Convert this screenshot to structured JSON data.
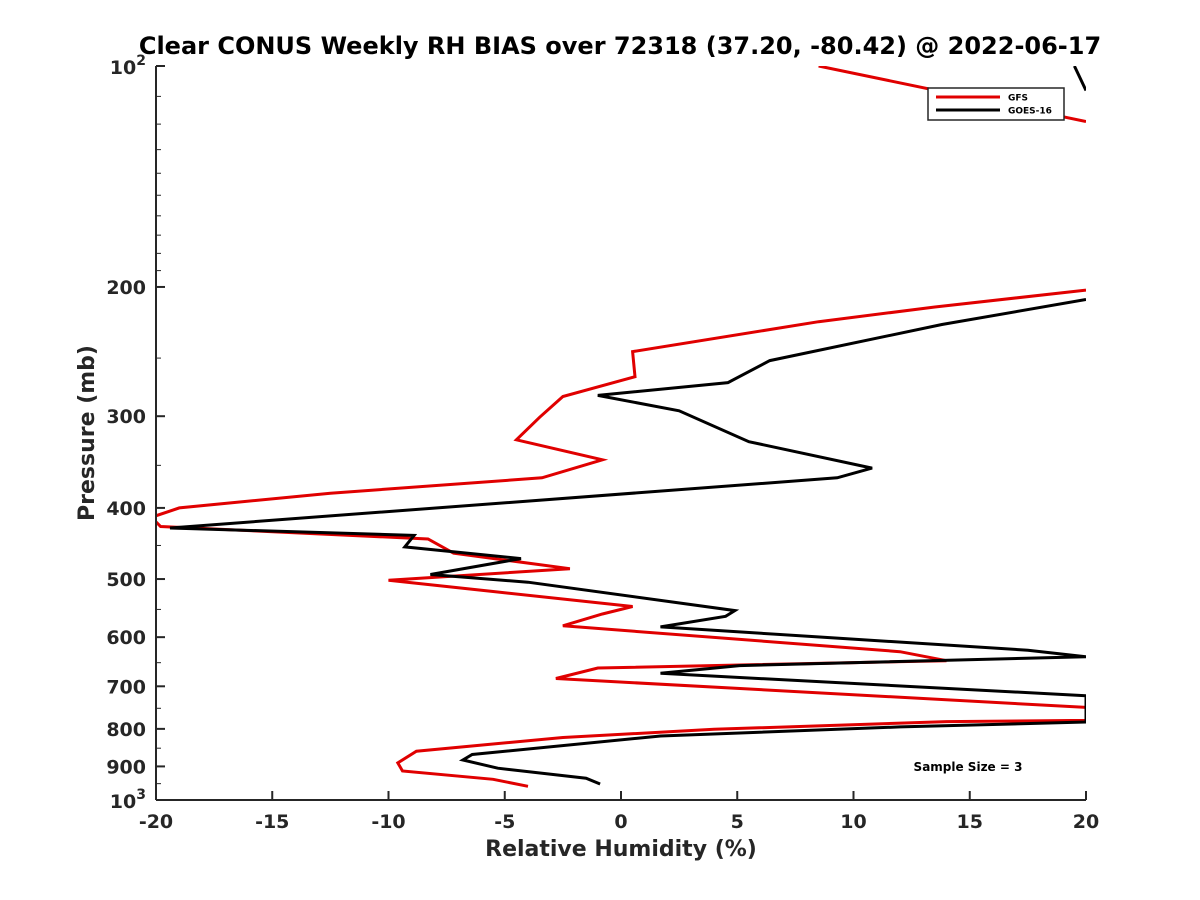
{
  "chart_data": {
    "type": "line",
    "title": "Clear CONUS Weekly RH BIAS over 72318 (37.20, -80.42) @ 2022-06-17",
    "xlabel": "Relative Humidity (%)",
    "ylabel": "Pressure (mb)",
    "xlim": [
      -20,
      20
    ],
    "ylim": [
      100,
      1000
    ],
    "yscale": "log",
    "y_reversed": true,
    "x_ticks": [
      "-20",
      "-15",
      "-10",
      "-5",
      "0",
      "5",
      "10",
      "15",
      "20"
    ],
    "y_ticks": [
      "200",
      "300",
      "400",
      "500",
      "600",
      "700",
      "800",
      "900"
    ],
    "y_tick_values": [
      200,
      300,
      400,
      500,
      600,
      700,
      800,
      900
    ],
    "y_end_ticks": [
      {
        "base": "10",
        "exp": "2",
        "value": 100
      },
      {
        "base": "10",
        "exp": "3",
        "value": 1000
      }
    ],
    "grid": false,
    "legend_position": "top-right",
    "annotation": "Sample Size = 3",
    "series": [
      {
        "name": "GFS",
        "color": "#e00000",
        "points": [
          [
            8.5,
            100
          ],
          [
            20,
            119
          ],
          null,
          [
            20,
            202
          ],
          [
            13.5,
            213
          ],
          [
            8.5,
            223
          ],
          [
            0.5,
            245
          ],
          [
            0.6,
            265
          ],
          [
            -2.5,
            282
          ],
          [
            -3.5,
            301
          ],
          [
            -4.5,
            323
          ],
          [
            -0.8,
            344
          ],
          [
            -3.4,
            364
          ],
          [
            -12.5,
            382
          ],
          [
            -19.0,
            400
          ],
          [
            -20.2,
            412
          ],
          [
            -19.8,
            424
          ],
          [
            -8.3,
            441
          ],
          [
            -7.2,
            461
          ],
          [
            -2.2,
            484
          ],
          [
            -10.0,
            502
          ],
          [
            -5.5,
            520
          ],
          [
            0.5,
            545
          ],
          [
            -0.8,
            558
          ],
          [
            -2.5,
            579
          ],
          [
            12.0,
            628
          ],
          [
            14.0,
            646
          ],
          [
            -1.0,
            661
          ],
          [
            -2.8,
            683
          ],
          [
            20,
            748
          ],
          [
            20,
            779
          ],
          [
            14.0,
            782
          ],
          [
            4.0,
            801
          ],
          [
            -2.5,
            822
          ],
          [
            -8.8,
            858
          ],
          [
            -9.6,
            890
          ],
          [
            -9.4,
            913
          ],
          [
            -5.5,
            937
          ],
          [
            -4.0,
            958
          ]
        ]
      },
      {
        "name": "GOES-16",
        "color": "#000000",
        "points": [
          [
            19.5,
            100
          ],
          [
            20,
            108
          ],
          null,
          [
            20,
            208
          ],
          [
            13.8,
            225
          ],
          [
            6.4,
            252
          ],
          [
            4.6,
            270
          ],
          [
            -1.0,
            281
          ],
          [
            2.5,
            295
          ],
          [
            5.5,
            325
          ],
          [
            10.8,
            353
          ],
          [
            9.3,
            364
          ],
          [
            -19.4,
            426
          ],
          [
            -8.9,
            436
          ],
          [
            -9.3,
            452
          ],
          [
            -4.3,
            469
          ],
          [
            -8.2,
            493
          ],
          [
            -4.0,
            505
          ],
          [
            4.9,
            552
          ],
          [
            4.5,
            562
          ],
          [
            1.7,
            581
          ],
          [
            17.5,
            625
          ],
          [
            20,
            638
          ],
          [
            5.1,
            656
          ],
          [
            1.7,
            672
          ],
          [
            20,
            721
          ],
          [
            20,
            783
          ],
          [
            12.0,
            795
          ],
          [
            1.7,
            818
          ],
          [
            -6.4,
            867
          ],
          [
            -6.8,
            882
          ],
          [
            -5.3,
            905
          ],
          [
            -1.5,
            934
          ],
          [
            -0.9,
            951
          ]
        ]
      }
    ]
  }
}
